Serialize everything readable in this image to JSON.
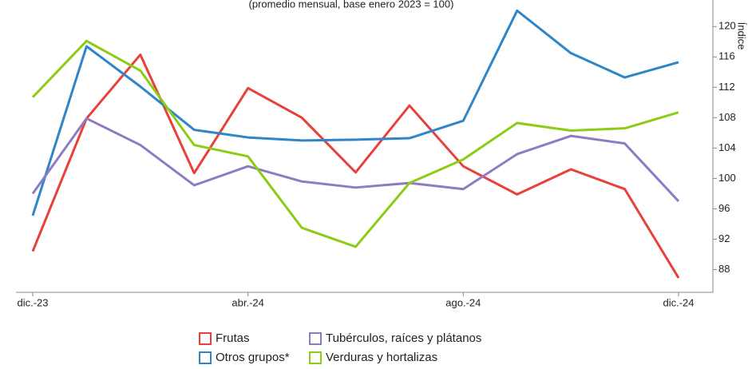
{
  "chart_data": {
    "type": "line",
    "subtitle": "(promedio mensual, base enero 2023 = 100)",
    "y_label": "Índice",
    "categories": [
      "dic.-23",
      null,
      null,
      null,
      "abr.-24",
      null,
      null,
      null,
      "ago.-24",
      null,
      null,
      null,
      "dic.-24"
    ],
    "series": [
      {
        "name": "Frutas",
        "color": "#e8403a",
        "values": [
          90.4,
          107.9,
          116.3,
          100.7,
          111.9,
          108.0,
          100.8,
          109.6,
          101.6,
          97.9,
          101.2,
          98.6,
          86.9
        ]
      },
      {
        "name": "Otros grupos*",
        "color": "#2e86c8",
        "values": [
          95.1,
          117.4,
          112.1,
          106.4,
          105.4,
          105.0,
          105.1,
          105.3,
          107.6,
          122.1,
          116.5,
          113.3,
          115.3
        ]
      },
      {
        "name": "Tubérculos, raíces y plátanos",
        "color": "#8e7cc3",
        "values": [
          98.0,
          107.9,
          104.4,
          99.1,
          101.6,
          99.6,
          98.8,
          99.4,
          98.6,
          103.2,
          105.6,
          104.6,
          97.0
        ]
      },
      {
        "name": "Verduras y hortalizas",
        "color": "#8ccc14",
        "values": [
          110.7,
          118.1,
          114.2,
          104.4,
          102.9,
          93.5,
          91.0,
          99.4,
          102.5,
          107.3,
          106.3,
          106.6,
          108.7
        ]
      }
    ],
    "ylim": [
      85,
      123.5
    ],
    "yticks": [
      88,
      92,
      96,
      100,
      104,
      108,
      112,
      116,
      120
    ]
  }
}
